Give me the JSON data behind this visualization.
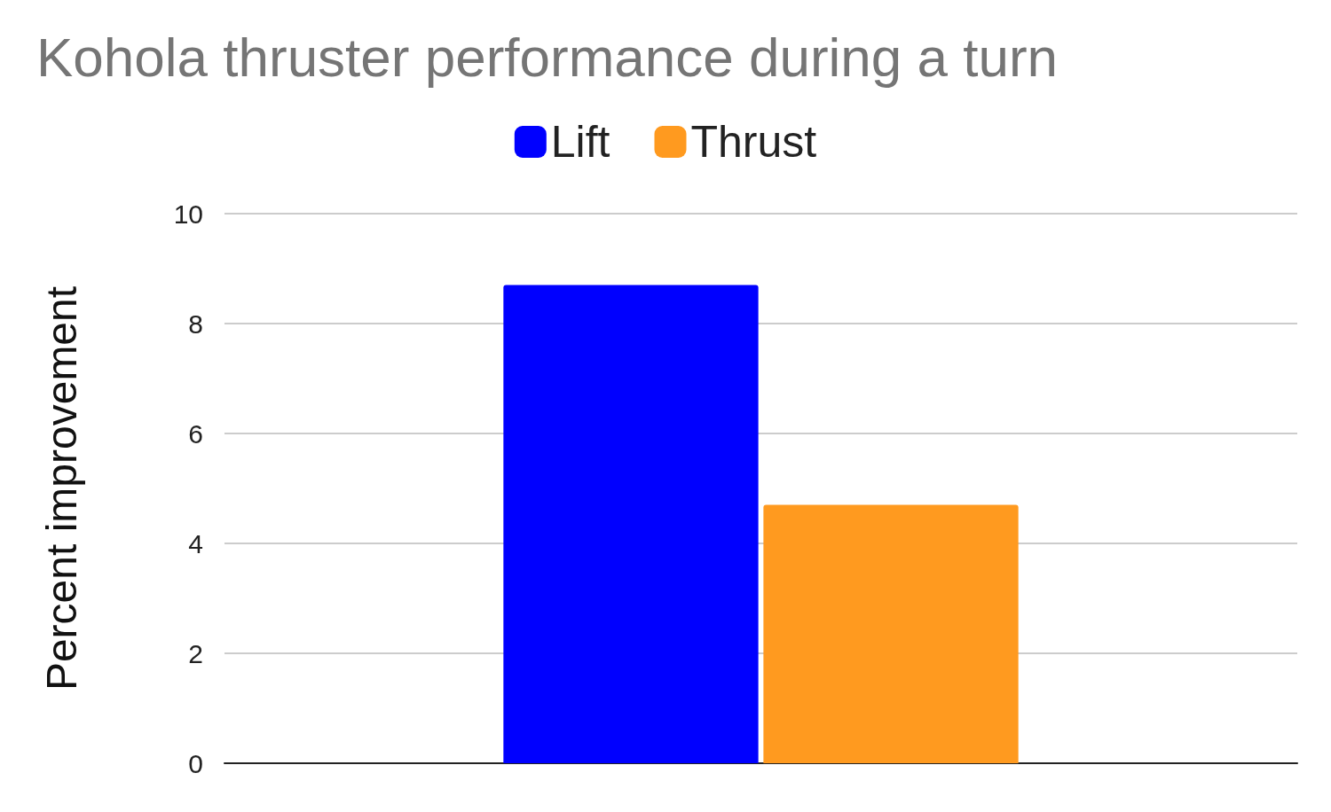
{
  "chart_data": {
    "type": "bar",
    "title": "Kohola thruster performance during a turn",
    "ylabel": "Percent improvement",
    "categories": [
      null
    ],
    "series": [
      {
        "name": "Lift",
        "color": "#0000ff",
        "values": [
          8.7
        ]
      },
      {
        "name": "Thrust",
        "color": "#ff9a1f",
        "values": [
          4.7
        ]
      }
    ],
    "ylim": [
      0,
      10
    ],
    "yticks": [
      0,
      2,
      4,
      6,
      8,
      10
    ],
    "grid": "y",
    "legend": "top"
  }
}
